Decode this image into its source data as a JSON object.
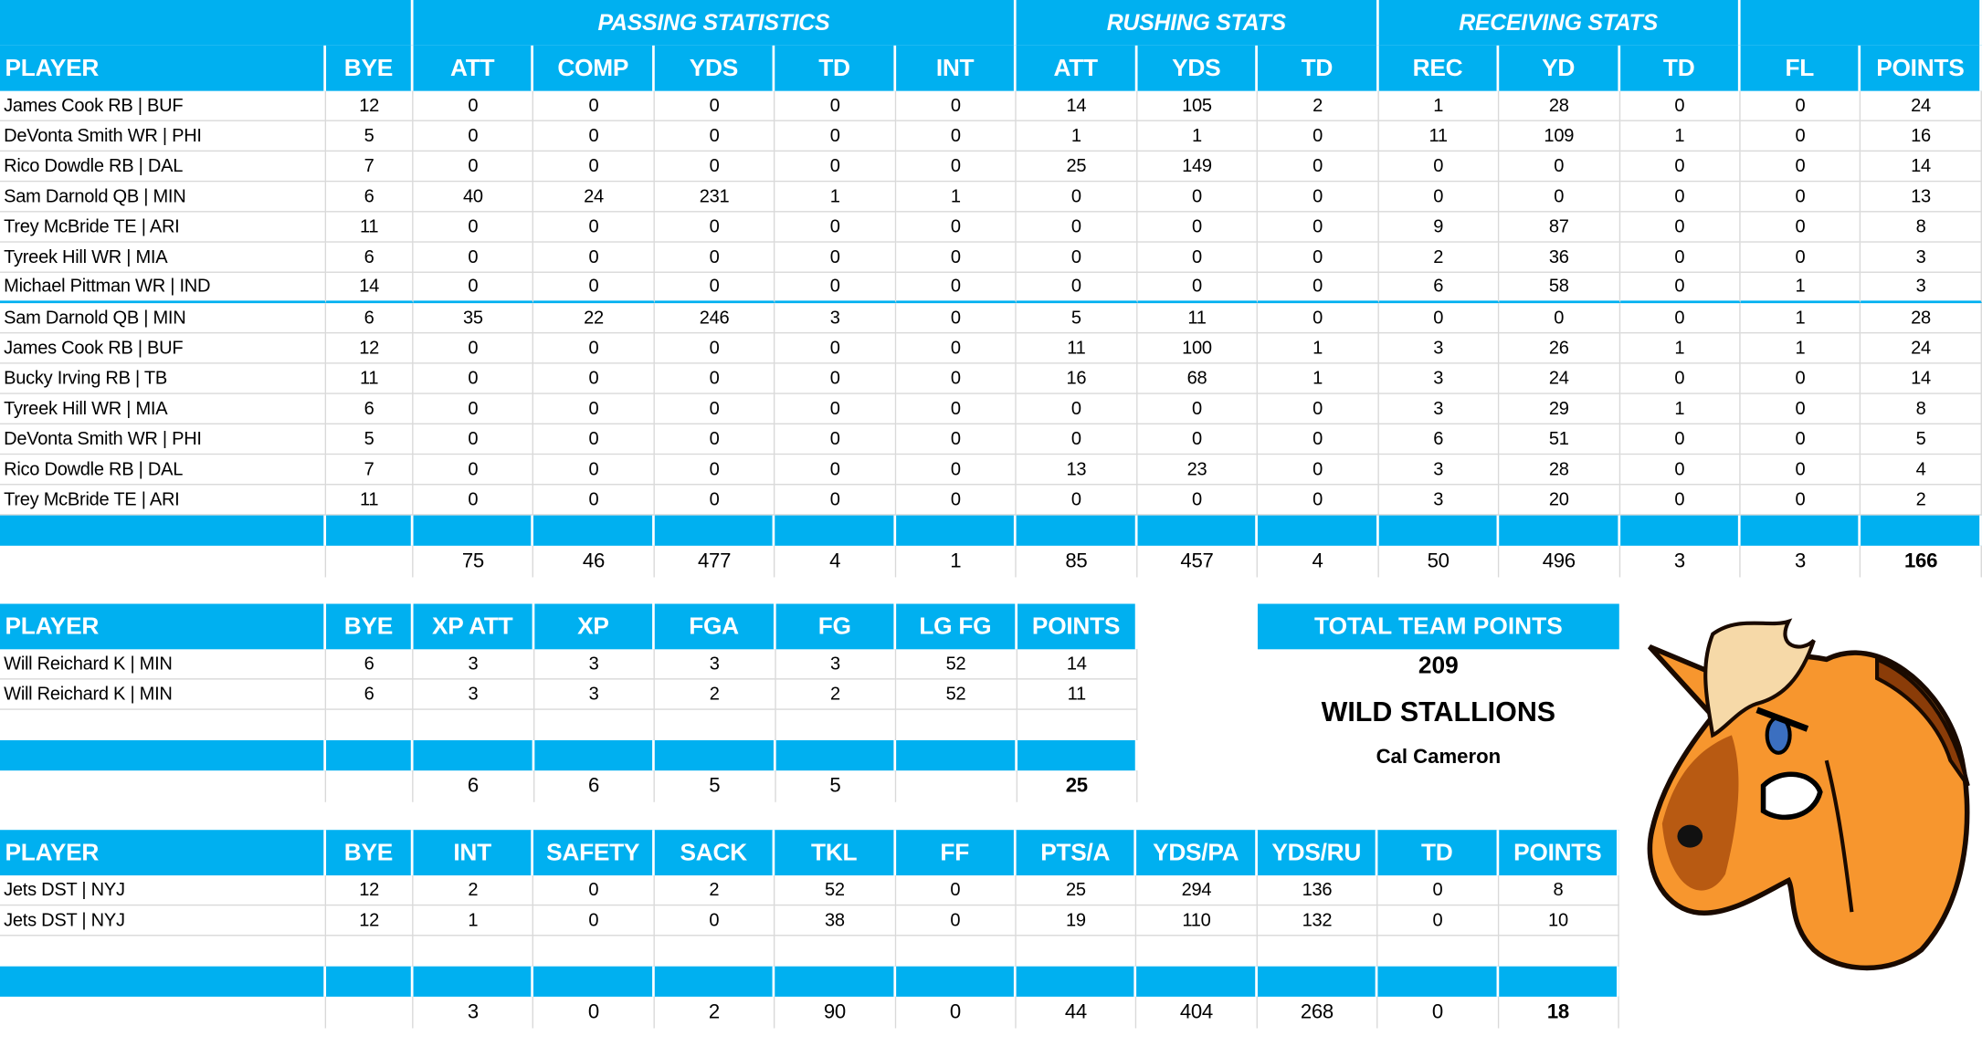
{
  "colors": {
    "header_blue": "#00b0f0",
    "grid": "#d9d9d9"
  },
  "main": {
    "group_headers": [
      {
        "label": "",
        "span": 2
      },
      {
        "label": "PASSING STATISTICS",
        "span": 5
      },
      {
        "label": "RUSHING STATS",
        "span": 3
      },
      {
        "label": "RECEIVING STATS",
        "span": 3
      },
      {
        "label": "",
        "span": 2
      }
    ],
    "columns": [
      "PLAYER",
      "BYE",
      "ATT",
      "COMP",
      "YDS",
      "TD",
      "INT",
      "ATT",
      "YDS",
      "TD",
      "REC",
      "YD",
      "TD",
      "FL",
      "POINTS"
    ],
    "rows": [
      [
        "James Cook RB | BUF",
        12,
        0,
        0,
        0,
        0,
        0,
        14,
        105,
        2,
        1,
        28,
        0,
        0,
        24
      ],
      [
        "DeVonta Smith WR | PHI",
        5,
        0,
        0,
        0,
        0,
        0,
        1,
        1,
        0,
        11,
        109,
        1,
        0,
        16
      ],
      [
        "Rico Dowdle RB | DAL",
        7,
        0,
        0,
        0,
        0,
        0,
        25,
        149,
        0,
        0,
        0,
        0,
        0,
        14
      ],
      [
        "Sam Darnold QB | MIN",
        6,
        40,
        24,
        231,
        1,
        1,
        0,
        0,
        0,
        0,
        0,
        0,
        0,
        13
      ],
      [
        "Trey McBride TE | ARI",
        11,
        0,
        0,
        0,
        0,
        0,
        0,
        0,
        0,
        9,
        87,
        0,
        0,
        8
      ],
      [
        "Tyreek Hill WR | MIA",
        6,
        0,
        0,
        0,
        0,
        0,
        0,
        0,
        0,
        2,
        36,
        0,
        0,
        3
      ],
      [
        "Michael Pittman WR | IND",
        14,
        0,
        0,
        0,
        0,
        0,
        0,
        0,
        0,
        6,
        58,
        0,
        1,
        3
      ],
      [
        "Sam Darnold QB | MIN",
        6,
        35,
        22,
        246,
        3,
        0,
        5,
        11,
        0,
        0,
        0,
        0,
        1,
        28
      ],
      [
        "James Cook RB | BUF",
        12,
        0,
        0,
        0,
        0,
        0,
        11,
        100,
        1,
        3,
        26,
        1,
        1,
        24
      ],
      [
        "Bucky Irving RB | TB",
        11,
        0,
        0,
        0,
        0,
        0,
        16,
        68,
        1,
        3,
        24,
        0,
        0,
        14
      ],
      [
        "Tyreek Hill WR | MIA",
        6,
        0,
        0,
        0,
        0,
        0,
        0,
        0,
        0,
        3,
        29,
        1,
        0,
        8
      ],
      [
        "DeVonta Smith WR | PHI",
        5,
        0,
        0,
        0,
        0,
        0,
        0,
        0,
        0,
        6,
        51,
        0,
        0,
        5
      ],
      [
        "Rico Dowdle RB | DAL",
        7,
        0,
        0,
        0,
        0,
        0,
        13,
        23,
        0,
        3,
        28,
        0,
        0,
        4
      ],
      [
        "Trey McBride TE | ARI",
        11,
        0,
        0,
        0,
        0,
        0,
        0,
        0,
        0,
        3,
        20,
        0,
        0,
        2
      ]
    ],
    "totals": [
      "",
      "",
      75,
      46,
      477,
      4,
      1,
      85,
      457,
      4,
      50,
      496,
      3,
      3,
      166
    ]
  },
  "kicker": {
    "columns": [
      "PLAYER",
      "BYE",
      "XP ATT",
      "XP",
      "FGA",
      "FG",
      "LG FG",
      "POINTS"
    ],
    "rows": [
      [
        "Will Reichard K | MIN",
        6,
        3,
        3,
        3,
        3,
        52,
        14
      ],
      [
        "Will Reichard K | MIN",
        6,
        3,
        3,
        2,
        2,
        52,
        11
      ]
    ],
    "totals": [
      "",
      "",
      6,
      6,
      5,
      5,
      "",
      25
    ]
  },
  "defense": {
    "columns": [
      "PLAYER",
      "BYE",
      "INT",
      "SAFETY",
      "SACK",
      "TKL",
      "FF",
      "PTS/A",
      "YDS/PA",
      "YDS/RU",
      "TD",
      "POINTS"
    ],
    "rows": [
      [
        "Jets DST | NYJ",
        12,
        2,
        0,
        2,
        52,
        0,
        25,
        294,
        136,
        0,
        8
      ],
      [
        "Jets DST | NYJ",
        12,
        1,
        0,
        0,
        38,
        0,
        19,
        110,
        132,
        0,
        10
      ]
    ],
    "totals": [
      "",
      "",
      3,
      0,
      2,
      90,
      0,
      44,
      404,
      268,
      0,
      18
    ]
  },
  "team": {
    "title": "TOTAL TEAM POINTS",
    "points": 209,
    "name": "WILD STALLIONS",
    "owner": "Cal Cameron",
    "logo": "stallion-horse-head"
  }
}
